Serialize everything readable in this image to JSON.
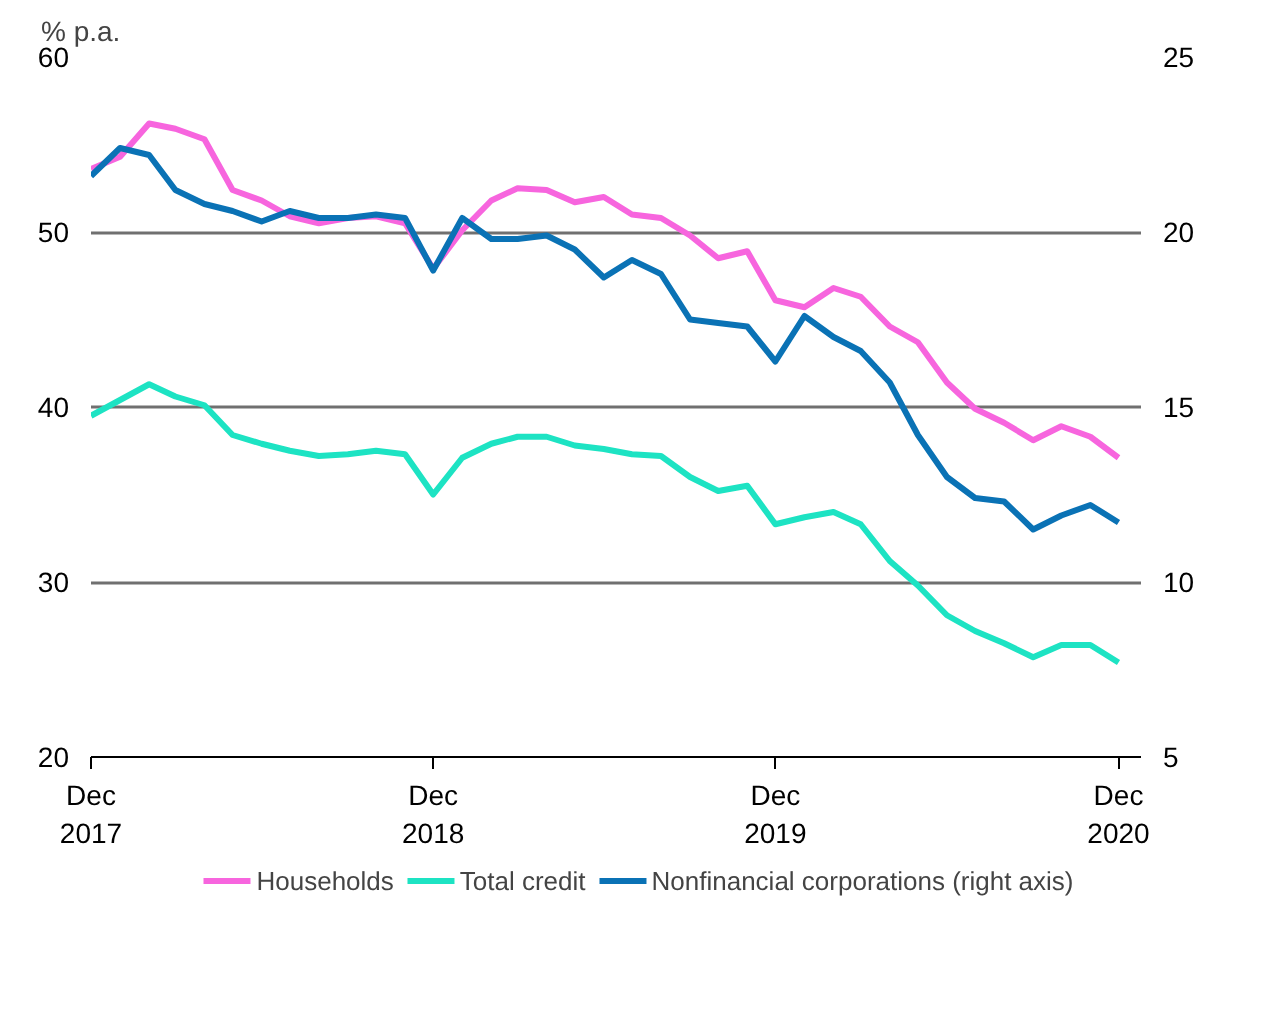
{
  "chart_data": {
    "type": "line",
    "ylabel": "% p.a.",
    "x": [
      "2017-12",
      "2018-01",
      "2018-02",
      "2018-03",
      "2018-04",
      "2018-05",
      "2018-06",
      "2018-07",
      "2018-08",
      "2018-09",
      "2018-10",
      "2018-11",
      "2018-12",
      "2019-01",
      "2019-02",
      "2019-03",
      "2019-04",
      "2019-05",
      "2019-06",
      "2019-07",
      "2019-08",
      "2019-09",
      "2019-10",
      "2019-11",
      "2019-12",
      "2020-01",
      "2020-02",
      "2020-03",
      "2020-04",
      "2020-05",
      "2020-06",
      "2020-07",
      "2020-08",
      "2020-09",
      "2020-10",
      "2020-11",
      "2020-12"
    ],
    "series": [
      {
        "name": "Households",
        "color": "#f765de",
        "values": [
          53.6,
          54.3,
          56.2,
          55.9,
          55.3,
          52.4,
          51.8,
          50.9,
          50.5,
          50.8,
          50.9,
          50.5,
          47.9,
          50.1,
          51.8,
          52.5,
          52.4,
          51.7,
          52.0,
          51.0,
          50.8,
          49.8,
          48.5,
          48.9,
          46.1,
          45.7,
          46.8,
          46.3,
          44.6,
          43.7,
          41.4,
          39.9,
          39.1,
          38.1,
          38.9,
          38.3,
          37.1
        ]
      },
      {
        "name": "Total credit",
        "color": "#1de3c3",
        "values": [
          39.5,
          40.4,
          41.3,
          40.6,
          40.1,
          38.4,
          37.9,
          37.5,
          37.2,
          37.3,
          37.5,
          37.3,
          35.0,
          37.1,
          37.9,
          38.3,
          38.3,
          37.8,
          37.6,
          37.3,
          37.2,
          36.0,
          35.2,
          35.5,
          33.3,
          33.7,
          34.0,
          33.3,
          31.2,
          29.8,
          28.1,
          27.2,
          26.5,
          25.7,
          26.4,
          26.4,
          25.4
        ]
      },
      {
        "name": "Nonfinancial corporations (right axis)",
        "color": "#0a72b5",
        "axis": "y2",
        "values": [
          21.6,
          22.4,
          22.2,
          21.2,
          20.8,
          20.6,
          20.3,
          20.6,
          20.4,
          20.4,
          20.5,
          20.4,
          18.9,
          20.4,
          19.8,
          19.8,
          19.9,
          19.5,
          18.7,
          19.2,
          18.8,
          17.5,
          17.4,
          17.3,
          16.3,
          17.6,
          17.0,
          16.6,
          15.7,
          14.2,
          13.0,
          12.4,
          12.3,
          11.5,
          11.9,
          12.2,
          11.7
        ]
      }
    ],
    "xlim": [
      "2017-12-01",
      "2020-12-25"
    ],
    "xticks": [
      {
        "value": "2017-12",
        "label": "Dec\n2017"
      },
      {
        "value": "2018-12",
        "label": "Dec\n2018"
      },
      {
        "value": "2019-12",
        "label": "Dec\n2019"
      },
      {
        "value": "2020-12",
        "label": "Dec\n2020"
      }
    ],
    "ylim": [
      20,
      60
    ],
    "yticks": [
      20,
      30,
      40,
      50,
      60
    ],
    "y2lim": [
      5,
      25
    ],
    "y2ticks": [
      5,
      10,
      15,
      20,
      25
    ],
    "grid": "y",
    "legend": "bottom",
    "line_style": "solid"
  }
}
